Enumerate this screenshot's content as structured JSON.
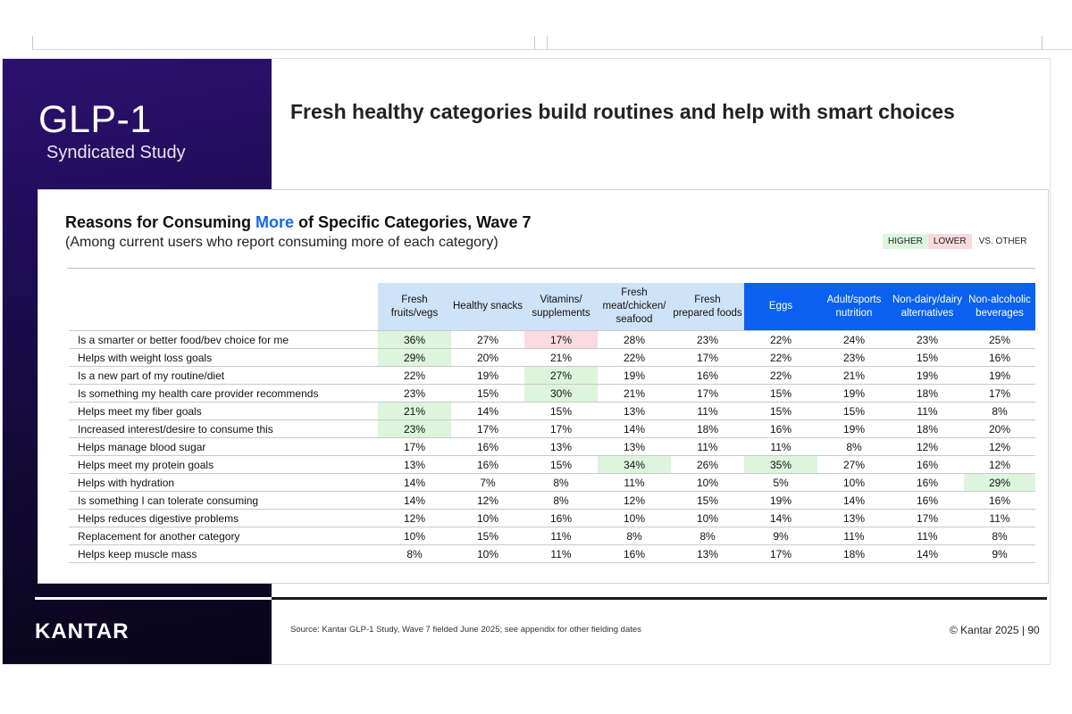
{
  "brand": {
    "title": "GLP-1",
    "subtitle": "Syndicated Study",
    "logo": "KANTAR"
  },
  "slide_title": "Fresh healthy categories build routines and help with smart choices",
  "chart": {
    "title_pre": "Reasons for Consuming ",
    "title_highlight": "More",
    "title_post": " of Specific Categories, Wave 7",
    "subtitle": "(Among current users who report consuming more of each category)"
  },
  "legend": {
    "higher": "HIGHER",
    "lower": "LOWER",
    "vs": "VS. OTHER"
  },
  "colors": {
    "higher": "#dcf5dc",
    "lower": "#fadadd",
    "group1_header": "#cfe3f8",
    "group2_header": "#0a61f0",
    "highlight": "#1668e6"
  },
  "chart_data": {
    "type": "table",
    "columns": [
      "Fresh fruits/vegs",
      "Healthy snacks",
      "Vitamins/ supplements",
      "Fresh meat/chicken/ seafood",
      "Fresh prepared foods",
      "Eggs",
      "Adult/sports nutrition",
      "Non-dairy/dairy alternatives",
      "Non-alcoholic beverages"
    ],
    "rows": [
      {
        "label": "Is a smarter or better food/bev choice for me",
        "values": [
          "36%",
          "27%",
          "17%",
          "28%",
          "23%",
          "22%",
          "24%",
          "23%",
          "25%"
        ],
        "flags": [
          "higher",
          "",
          "lower",
          "",
          "",
          "",
          "",
          "",
          ""
        ]
      },
      {
        "label": "Helps with weight loss goals",
        "values": [
          "29%",
          "20%",
          "21%",
          "22%",
          "17%",
          "22%",
          "23%",
          "15%",
          "16%"
        ],
        "flags": [
          "higher",
          "",
          "",
          "",
          "",
          "",
          "",
          "",
          ""
        ]
      },
      {
        "label": "Is a new part of my routine/diet",
        "values": [
          "22%",
          "19%",
          "27%",
          "19%",
          "16%",
          "22%",
          "21%",
          "19%",
          "19%"
        ],
        "flags": [
          "",
          "",
          "higher",
          "",
          "",
          "",
          "",
          "",
          ""
        ]
      },
      {
        "label": "Is something my health care provider recommends",
        "values": [
          "23%",
          "15%",
          "30%",
          "21%",
          "17%",
          "15%",
          "19%",
          "18%",
          "17%"
        ],
        "flags": [
          "",
          "",
          "higher",
          "",
          "",
          "",
          "",
          "",
          ""
        ]
      },
      {
        "label": "Helps meet my fiber goals",
        "values": [
          "21%",
          "14%",
          "15%",
          "13%",
          "11%",
          "15%",
          "15%",
          "11%",
          "8%"
        ],
        "flags": [
          "higher",
          "",
          "",
          "",
          "",
          "",
          "",
          "",
          ""
        ]
      },
      {
        "label": "Increased interest/desire to consume this",
        "values": [
          "23%",
          "17%",
          "17%",
          "14%",
          "18%",
          "16%",
          "19%",
          "18%",
          "20%"
        ],
        "flags": [
          "higher",
          "",
          "",
          "",
          "",
          "",
          "",
          "",
          ""
        ]
      },
      {
        "label": "Helps manage blood sugar",
        "values": [
          "17%",
          "16%",
          "13%",
          "13%",
          "11%",
          "11%",
          "8%",
          "12%",
          "12%"
        ],
        "flags": [
          "",
          "",
          "",
          "",
          "",
          "",
          "",
          "",
          ""
        ]
      },
      {
        "label": "Helps meet my protein goals",
        "values": [
          "13%",
          "16%",
          "15%",
          "34%",
          "26%",
          "35%",
          "27%",
          "16%",
          "12%"
        ],
        "flags": [
          "",
          "",
          "",
          "higher",
          "",
          "higher",
          "",
          "",
          ""
        ]
      },
      {
        "label": "Helps with hydration",
        "values": [
          "14%",
          "7%",
          "8%",
          "11%",
          "10%",
          "5%",
          "10%",
          "16%",
          "29%"
        ],
        "flags": [
          "",
          "",
          "",
          "",
          "",
          "",
          "",
          "",
          "higher"
        ]
      },
      {
        "label": "Is something I can tolerate consuming",
        "values": [
          "14%",
          "12%",
          "8%",
          "12%",
          "15%",
          "19%",
          "14%",
          "16%",
          "16%"
        ],
        "flags": [
          "",
          "",
          "",
          "",
          "",
          "",
          "",
          "",
          ""
        ]
      },
      {
        "label": "Helps reduces digestive problems",
        "values": [
          "12%",
          "10%",
          "16%",
          "10%",
          "10%",
          "14%",
          "13%",
          "17%",
          "11%"
        ],
        "flags": [
          "",
          "",
          "",
          "",
          "",
          "",
          "",
          "",
          ""
        ]
      },
      {
        "label": "Replacement for another category",
        "values": [
          "10%",
          "15%",
          "11%",
          "8%",
          "8%",
          "9%",
          "11%",
          "11%",
          "8%"
        ],
        "flags": [
          "",
          "",
          "",
          "",
          "",
          "",
          "",
          "",
          ""
        ]
      },
      {
        "label": "Helps keep muscle mass",
        "values": [
          "8%",
          "10%",
          "11%",
          "16%",
          "13%",
          "17%",
          "18%",
          "14%",
          "9%"
        ],
        "flags": [
          "",
          "",
          "",
          "",
          "",
          "",
          "",
          "",
          ""
        ]
      }
    ]
  },
  "footer": {
    "source": "Source: Kantar GLP-1 Study, Wave 7 fielded June 2025; see appendix for other fielding dates",
    "copyright": "© Kantar 2025 | 90"
  }
}
